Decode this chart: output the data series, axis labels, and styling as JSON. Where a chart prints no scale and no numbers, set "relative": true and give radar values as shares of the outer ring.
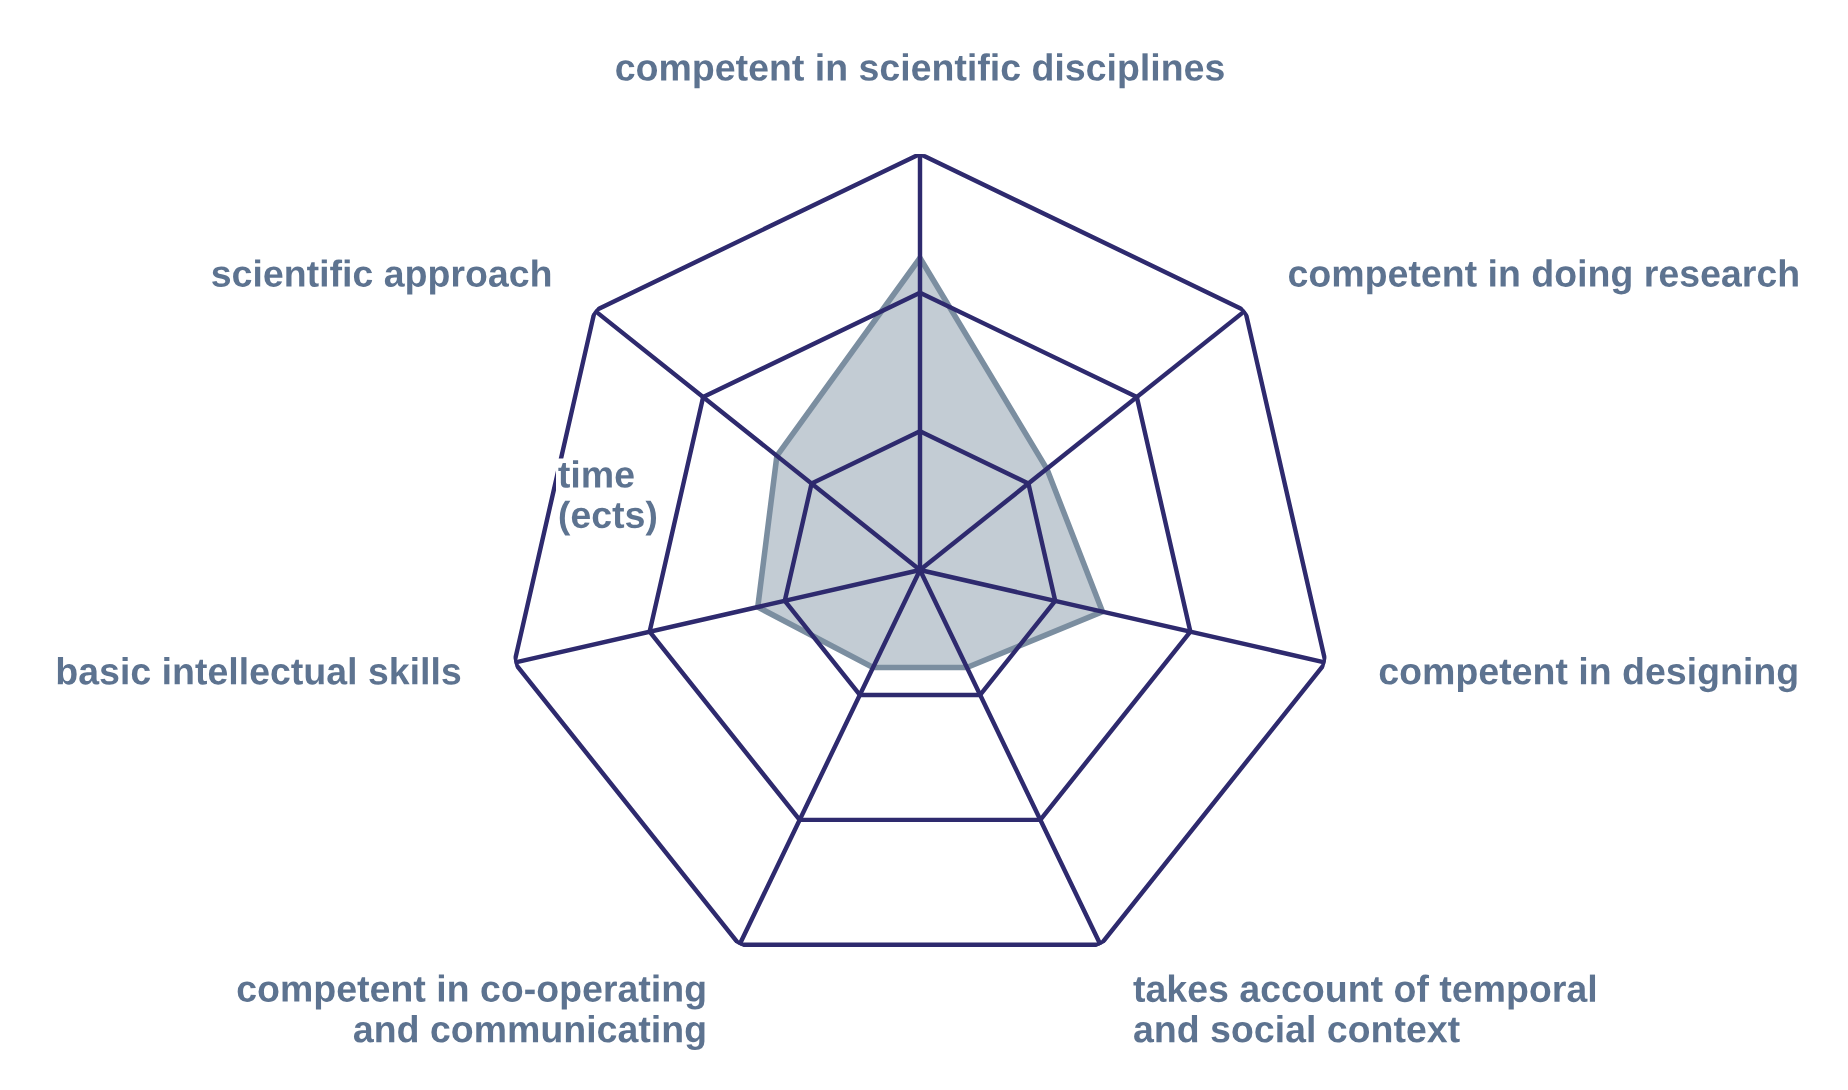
{
  "chart_data": {
    "type": "radar",
    "relative": true,
    "grid": true,
    "ylabel": "time\n(ects)",
    "categories": [
      "competent in scientific disciplines",
      "competent in doing research",
      "competent in designing",
      "takes account of temporal\nand social context",
      "competent in co-operating\nand communicating",
      "basic intellectual skills",
      "scientific approach"
    ],
    "series": [
      {
        "color": "#7b8ea0",
        "values": [
          0.75,
          0.39,
          0.45,
          0.26,
          0.26,
          0.4,
          0.44
        ]
      }
    ]
  }
}
